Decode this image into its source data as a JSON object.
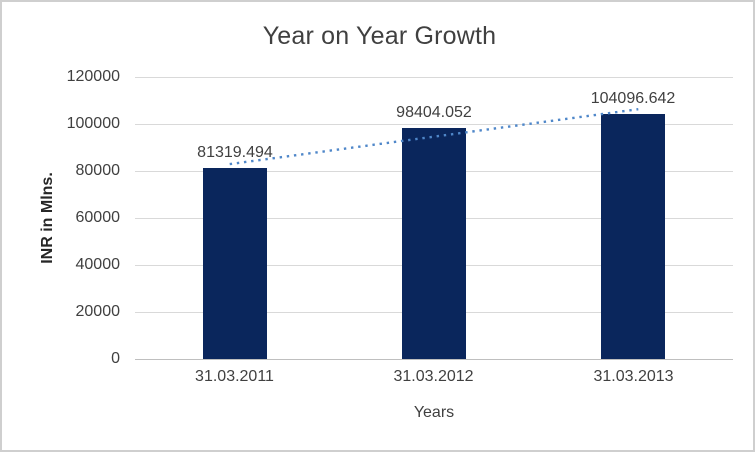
{
  "window": {
    "background": "#ffffff",
    "border_color": "#cfcfcf"
  },
  "chart_data": {
    "type": "bar",
    "title": "Year on Year Growth",
    "categories": [
      "31.03.2011",
      "31.03.2012",
      "31.03.2013"
    ],
    "series": [
      {
        "name": "INR in Mlns.",
        "values": [
          81319.494,
          98404.052,
          104096.642
        ]
      }
    ],
    "data_labels": [
      "81319.494",
      "98404.052",
      "104096.642"
    ],
    "xlabel": "Years",
    "ylabel": "INR in Mlns.",
    "ylim": [
      0,
      120000
    ],
    "ytick_step": 20000,
    "yticks": [
      "120000",
      "100000",
      "80000",
      "60000",
      "40000",
      "20000",
      "0"
    ],
    "grid": true,
    "legend": "none",
    "trendline": {
      "type": "linear",
      "style": "dotted",
      "color": "#4f87c9"
    },
    "colors": {
      "bar": "#0a265c",
      "gridline": "#d9d9d9",
      "axis_line": "#bfbfbf",
      "text": "#404040",
      "y_axis_title_text": "#262626"
    }
  }
}
